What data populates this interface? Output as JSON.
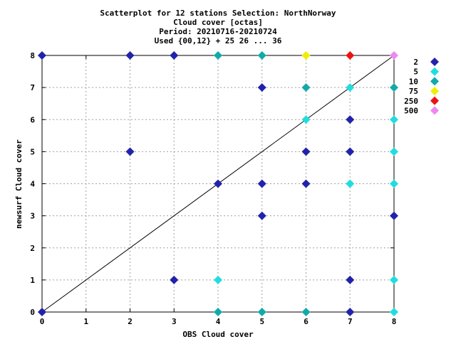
{
  "chart_data": {
    "type": "scatter",
    "title_lines": [
      "Scatterplot for   12 stations Selection: NorthNorway",
      "Cloud cover [octas]",
      "Period: 20210716-20210724",
      "Used {00,12} + 25 26 ... 36"
    ],
    "xlabel": "OBS Cloud cover",
    "ylabel": "newsurf Cloud cover",
    "xlim": [
      0,
      8
    ],
    "ylim": [
      0,
      8
    ],
    "x_ticks": [
      0,
      1,
      2,
      3,
      4,
      5,
      6,
      7,
      8
    ],
    "y_ticks": [
      0,
      1,
      2,
      3,
      4,
      5,
      6,
      7,
      8
    ],
    "grid": true,
    "diagonal_line": true,
    "legend_placement": "right",
    "legend": [
      {
        "label": "2",
        "color": "#2222aa"
      },
      {
        "label": "5",
        "color": "#22dddd"
      },
      {
        "label": "10",
        "color": "#11aaaa"
      },
      {
        "label": "75",
        "color": "#eeee00"
      },
      {
        "label": "250",
        "color": "#ee1111"
      },
      {
        "label": "500",
        "color": "#ee88ee"
      }
    ],
    "points": [
      {
        "x": 0,
        "y": 8,
        "category": "2"
      },
      {
        "x": 2,
        "y": 8,
        "category": "2"
      },
      {
        "x": 3,
        "y": 8,
        "category": "2"
      },
      {
        "x": 4,
        "y": 8,
        "category": "10"
      },
      {
        "x": 5,
        "y": 8,
        "category": "10"
      },
      {
        "x": 6,
        "y": 8,
        "category": "75"
      },
      {
        "x": 7,
        "y": 8,
        "category": "250"
      },
      {
        "x": 8,
        "y": 8,
        "category": "500"
      },
      {
        "x": 5,
        "y": 7,
        "category": "2"
      },
      {
        "x": 6,
        "y": 7,
        "category": "10"
      },
      {
        "x": 7,
        "y": 7,
        "category": "5"
      },
      {
        "x": 8,
        "y": 7,
        "category": "10"
      },
      {
        "x": 6,
        "y": 6,
        "category": "5"
      },
      {
        "x": 7,
        "y": 6,
        "category": "2"
      },
      {
        "x": 8,
        "y": 6,
        "category": "5"
      },
      {
        "x": 2,
        "y": 5,
        "category": "2"
      },
      {
        "x": 6,
        "y": 5,
        "category": "2"
      },
      {
        "x": 7,
        "y": 5,
        "category": "2"
      },
      {
        "x": 8,
        "y": 5,
        "category": "5"
      },
      {
        "x": 4,
        "y": 4,
        "category": "2"
      },
      {
        "x": 5,
        "y": 4,
        "category": "2"
      },
      {
        "x": 6,
        "y": 4,
        "category": "2"
      },
      {
        "x": 7,
        "y": 4,
        "category": "5"
      },
      {
        "x": 8,
        "y": 4,
        "category": "5"
      },
      {
        "x": 5,
        "y": 3,
        "category": "2"
      },
      {
        "x": 8,
        "y": 3,
        "category": "2"
      },
      {
        "x": 3,
        "y": 1,
        "category": "2"
      },
      {
        "x": 4,
        "y": 1,
        "category": "5"
      },
      {
        "x": 7,
        "y": 1,
        "category": "2"
      },
      {
        "x": 8,
        "y": 1,
        "category": "5"
      },
      {
        "x": 0,
        "y": 0,
        "category": "2"
      },
      {
        "x": 4,
        "y": 0,
        "category": "10"
      },
      {
        "x": 5,
        "y": 0,
        "category": "10"
      },
      {
        "x": 6,
        "y": 0,
        "category": "10"
      },
      {
        "x": 7,
        "y": 0,
        "category": "2"
      },
      {
        "x": 8,
        "y": 0,
        "category": "5"
      }
    ]
  }
}
